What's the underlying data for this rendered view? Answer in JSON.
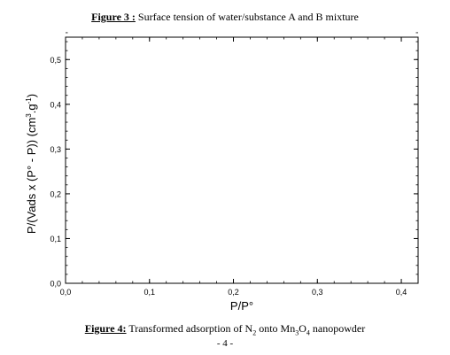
{
  "figure3": {
    "label": "Figure 3 :",
    "caption": " Surface tension of water/substance A and B mixture"
  },
  "figure4": {
    "label": "Figure 4:",
    "caption_pre": " Transformed adsorption of N",
    "caption_sub1": "2",
    "caption_mid": " onto Mn",
    "caption_sub2": "3",
    "caption_mid2": "O",
    "caption_sub3": "4",
    "caption_post": " nanopowder"
  },
  "page_number": "- 4 -",
  "chart_data": {
    "type": "scatter",
    "title": "",
    "xlabel": "P/P°",
    "ylabel": {
      "pre": "P/(Vads x (P° - P)) (cm",
      "sup1": "3",
      "mid": ".g",
      "sup2": "-1",
      "post": ")"
    },
    "xlim": [
      0.0,
      0.42
    ],
    "ylim": [
      0.0,
      0.55
    ],
    "xticks": [
      0.0,
      0.1,
      0.2,
      0.3,
      0.4
    ],
    "xtick_labels": [
      "0,0",
      "0,1",
      "0,2",
      "0,3",
      "0,4"
    ],
    "yticks": [
      0.0,
      0.1,
      0.2,
      0.3,
      0.4,
      0.5
    ],
    "ytick_labels": [
      "0,0",
      "0,1",
      "0,2",
      "0,3",
      "0,4",
      "0,5"
    ],
    "minor_step_x": 0.02,
    "minor_step_y": 0.02,
    "grid": false,
    "series": []
  }
}
